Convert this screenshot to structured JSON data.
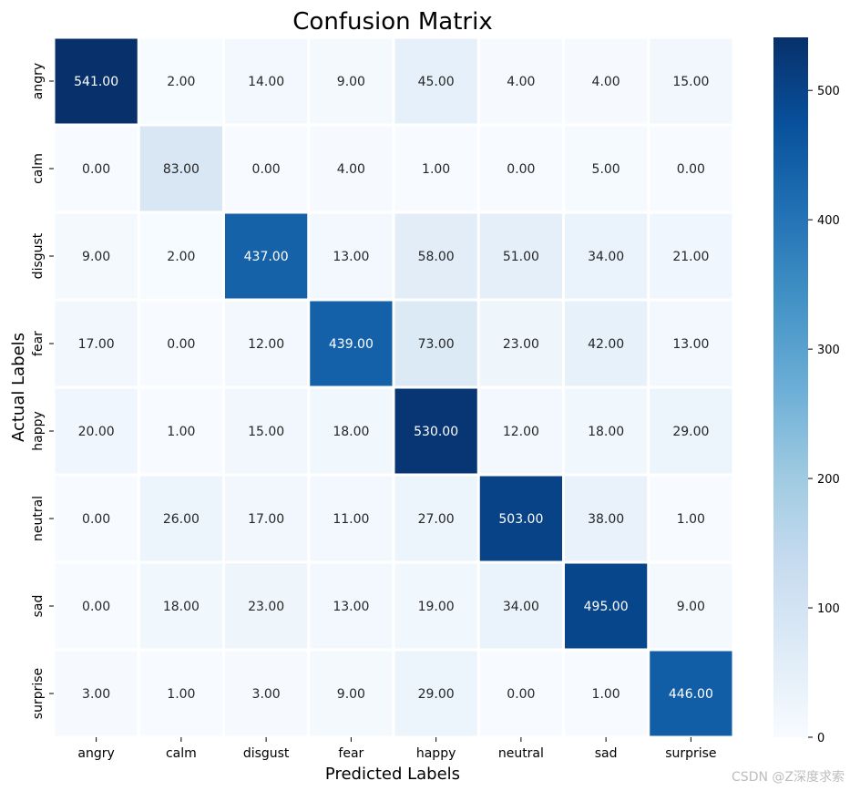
{
  "chart_data": {
    "type": "heatmap",
    "title": "Confusion Matrix",
    "xlabel": "Predicted Labels",
    "ylabel": "Actual Labels",
    "x_categories": [
      "angry",
      "calm",
      "disgust",
      "fear",
      "happy",
      "neutral",
      "sad",
      "surprise"
    ],
    "y_categories": [
      "angry",
      "calm",
      "disgust",
      "fear",
      "happy",
      "neutral",
      "sad",
      "surprise"
    ],
    "values": [
      [
        541,
        2,
        14,
        9,
        45,
        4,
        4,
        15
      ],
      [
        0,
        83,
        0,
        4,
        1,
        0,
        5,
        0
      ],
      [
        9,
        2,
        437,
        13,
        58,
        51,
        34,
        21
      ],
      [
        17,
        0,
        12,
        439,
        73,
        23,
        42,
        13
      ],
      [
        20,
        1,
        15,
        18,
        530,
        12,
        18,
        29
      ],
      [
        0,
        26,
        17,
        11,
        27,
        503,
        38,
        1
      ],
      [
        0,
        18,
        23,
        13,
        19,
        34,
        495,
        9
      ],
      [
        3,
        1,
        3,
        9,
        29,
        0,
        1,
        446
      ]
    ],
    "value_format": "0.00",
    "colormap": "Blues",
    "colorbar": {
      "ticks": [
        0,
        100,
        200,
        300,
        400,
        500
      ],
      "range": [
        0,
        541
      ]
    },
    "grid": false
  },
  "watermark": "CSDN @Z深度求索"
}
